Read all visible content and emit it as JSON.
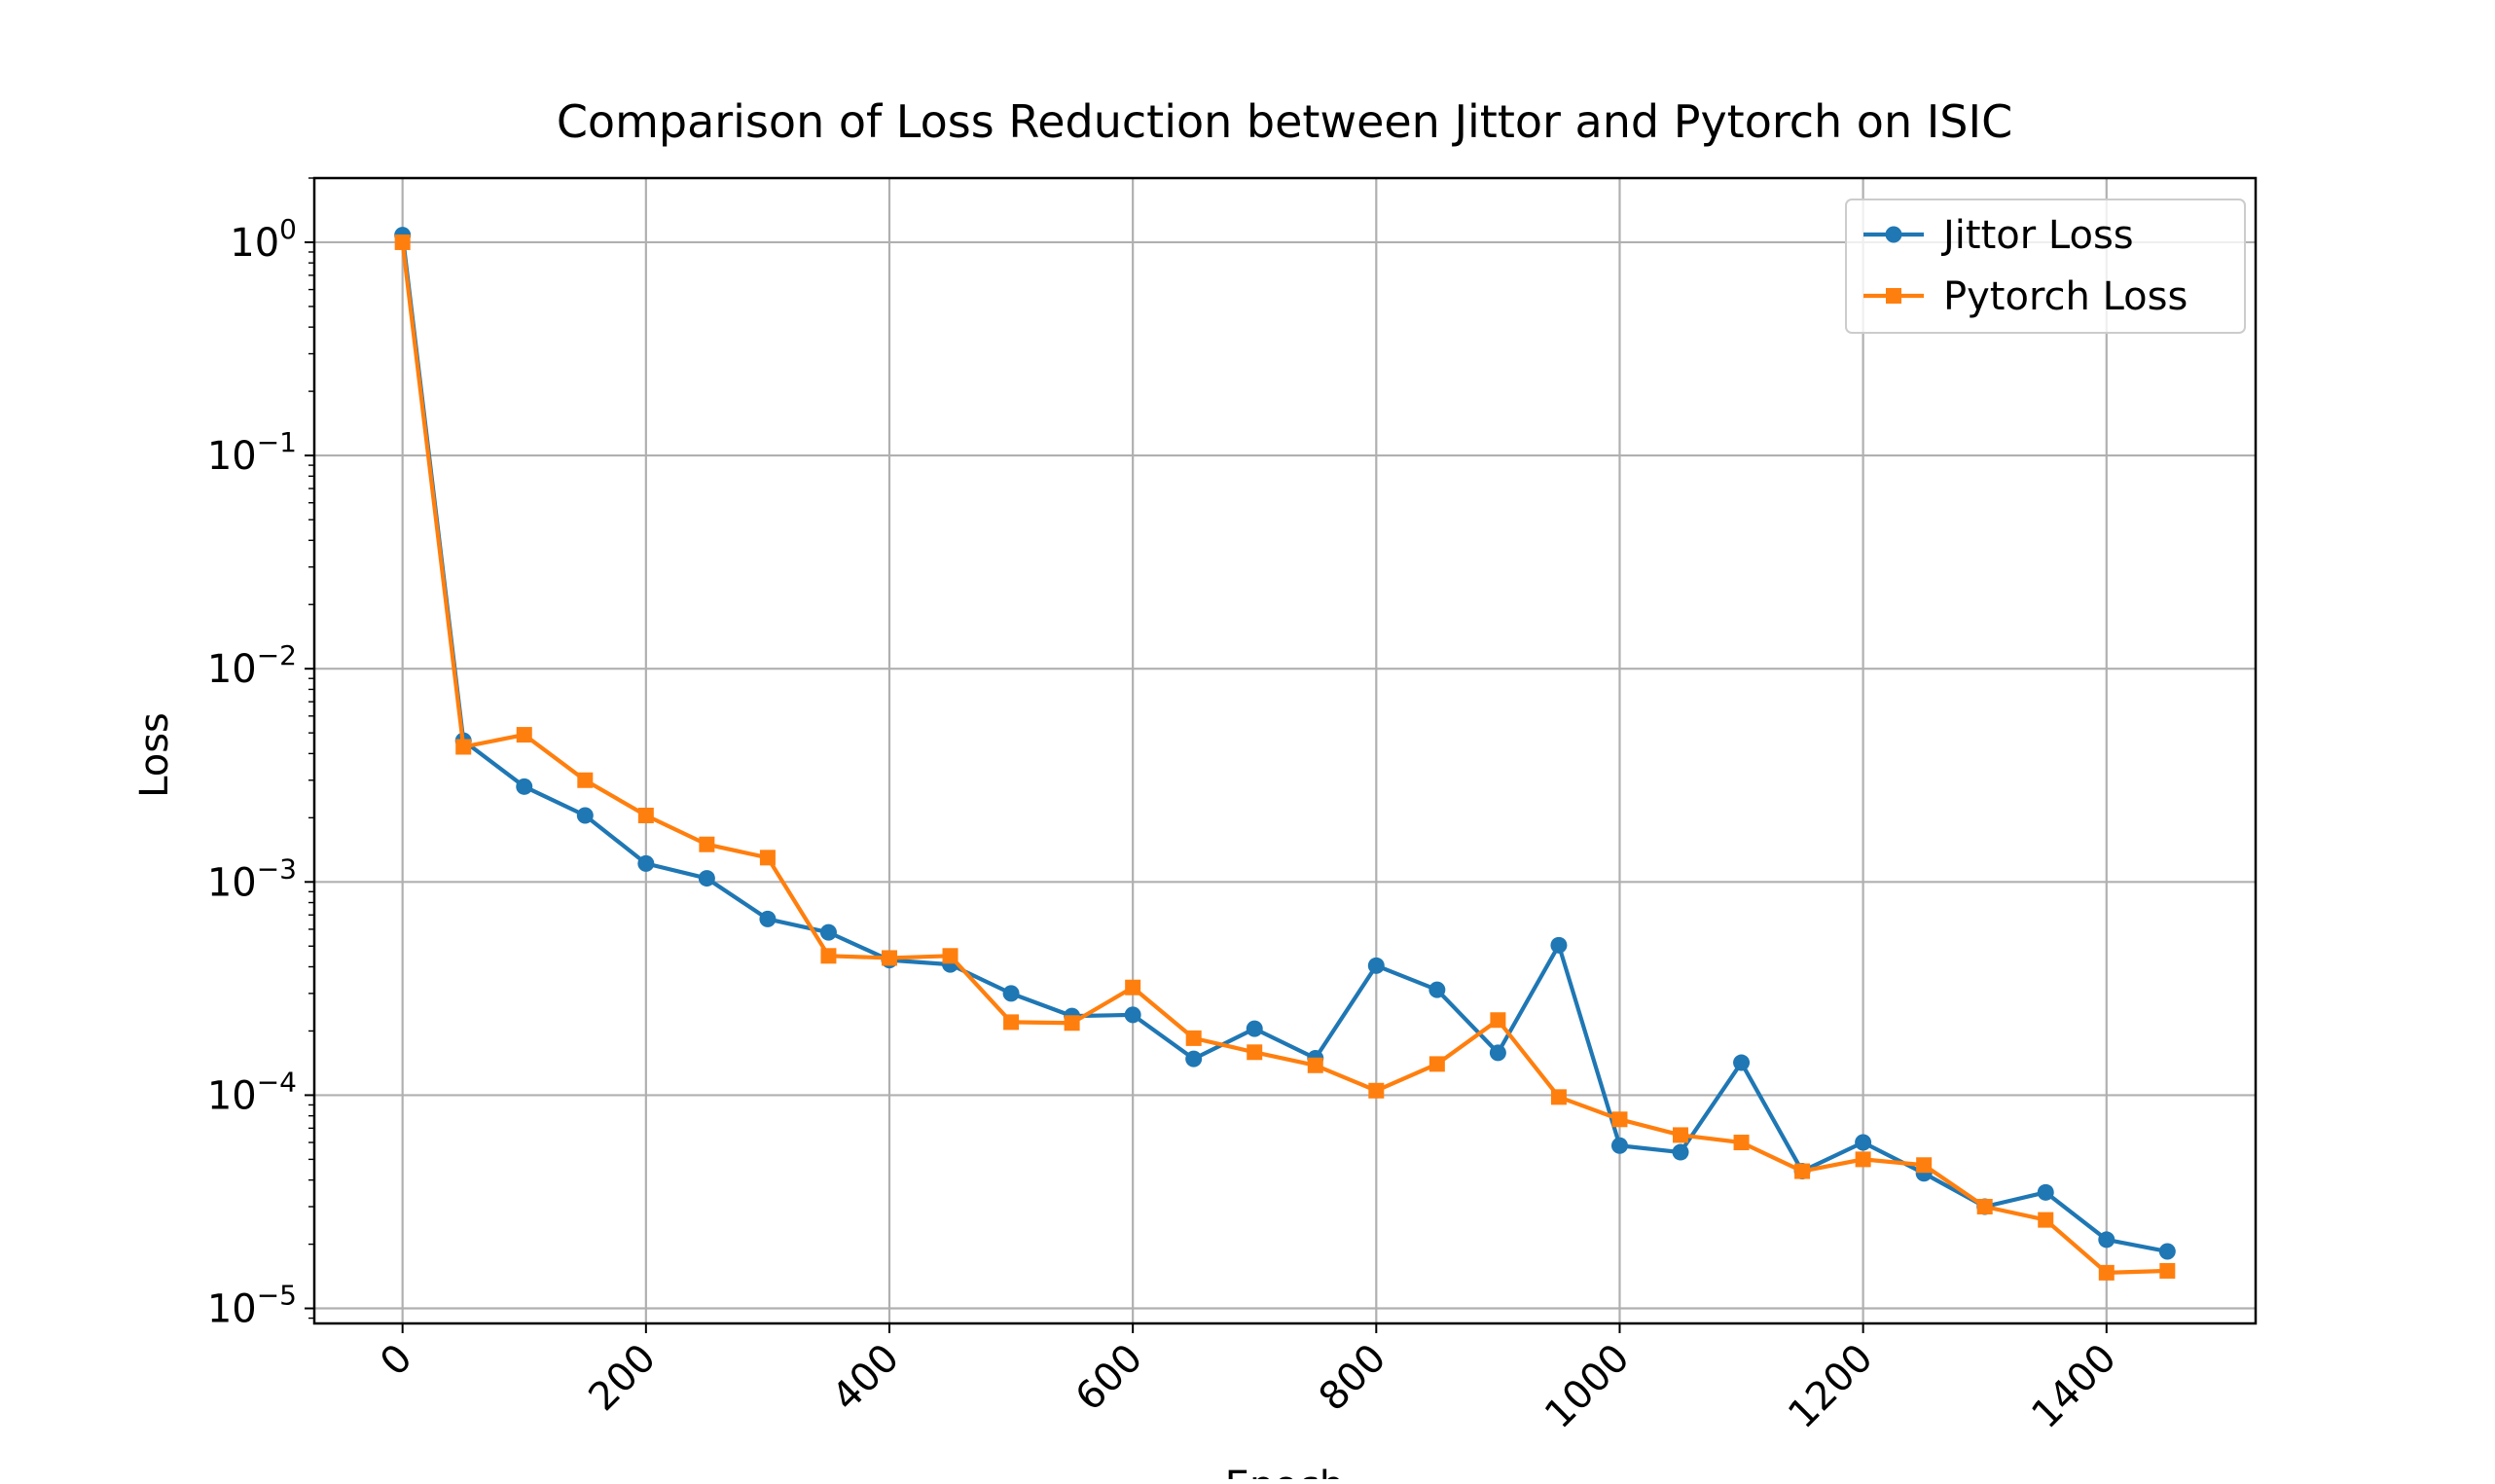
{
  "chart_data": {
    "type": "line",
    "title": "Comparison of Loss Reduction between Jittor and Pytorch on ISIC",
    "xlabel": "Epoch",
    "ylabel": "Loss",
    "xlim": [
      -72.5,
      1522.5
    ],
    "ylim": [
      8.5e-06,
      2.0
    ],
    "yscale": "log",
    "grid": true,
    "legend_position": "top-right",
    "x_ticks": [
      0,
      200,
      400,
      600,
      800,
      1000,
      1200,
      1400
    ],
    "x_tick_labels": [
      "0",
      "200",
      "400",
      "600",
      "800",
      "1000",
      "1200",
      "1400"
    ],
    "y_ticks": [
      1e-05,
      0.0001,
      0.001,
      0.01,
      0.1,
      1
    ],
    "y_tick_labels": [
      {
        "base": "10",
        "exp": "−5"
      },
      {
        "base": "10",
        "exp": "−4"
      },
      {
        "base": "10",
        "exp": "−3"
      },
      {
        "base": "10",
        "exp": "−2"
      },
      {
        "base": "10",
        "exp": "−1"
      },
      {
        "base": "10",
        "exp": "0"
      }
    ],
    "x": [
      0,
      50,
      100,
      150,
      200,
      250,
      300,
      350,
      400,
      450,
      500,
      550,
      600,
      650,
      700,
      750,
      800,
      850,
      900,
      950,
      1000,
      1050,
      1100,
      1150,
      1200,
      1250,
      1300,
      1350,
      1400,
      1450
    ],
    "series": [
      {
        "name": "Jittor Loss",
        "color": "#1f77b4",
        "marker": "circle",
        "values": [
          1.08,
          0.0046,
          0.0028,
          0.00205,
          0.00122,
          0.00104,
          0.00067,
          0.00058,
          0.00043,
          0.00041,
          0.0003,
          0.000235,
          0.000238,
          0.000148,
          0.000205,
          0.000149,
          0.000405,
          0.000312,
          0.000158,
          0.000505,
          5.8e-05,
          5.4e-05,
          0.000142,
          4.4e-05,
          6e-05,
          4.3e-05,
          3e-05,
          3.5e-05,
          2.1e-05,
          1.85e-05
        ]
      },
      {
        "name": "Pytorch Loss",
        "color": "#ff7f0e",
        "marker": "square",
        "values": [
          1.0,
          0.0043,
          0.0049,
          0.003,
          0.00205,
          0.0015,
          0.0013,
          0.00045,
          0.00044,
          0.00045,
          0.00022,
          0.000218,
          0.00032,
          0.000185,
          0.000159,
          0.000138,
          0.000105,
          0.00014,
          0.000225,
          9.8e-05,
          7.7e-05,
          6.5e-05,
          6e-05,
          4.4e-05,
          5e-05,
          4.7e-05,
          3e-05,
          2.6e-05,
          1.47e-05,
          1.5e-05
        ]
      }
    ]
  }
}
